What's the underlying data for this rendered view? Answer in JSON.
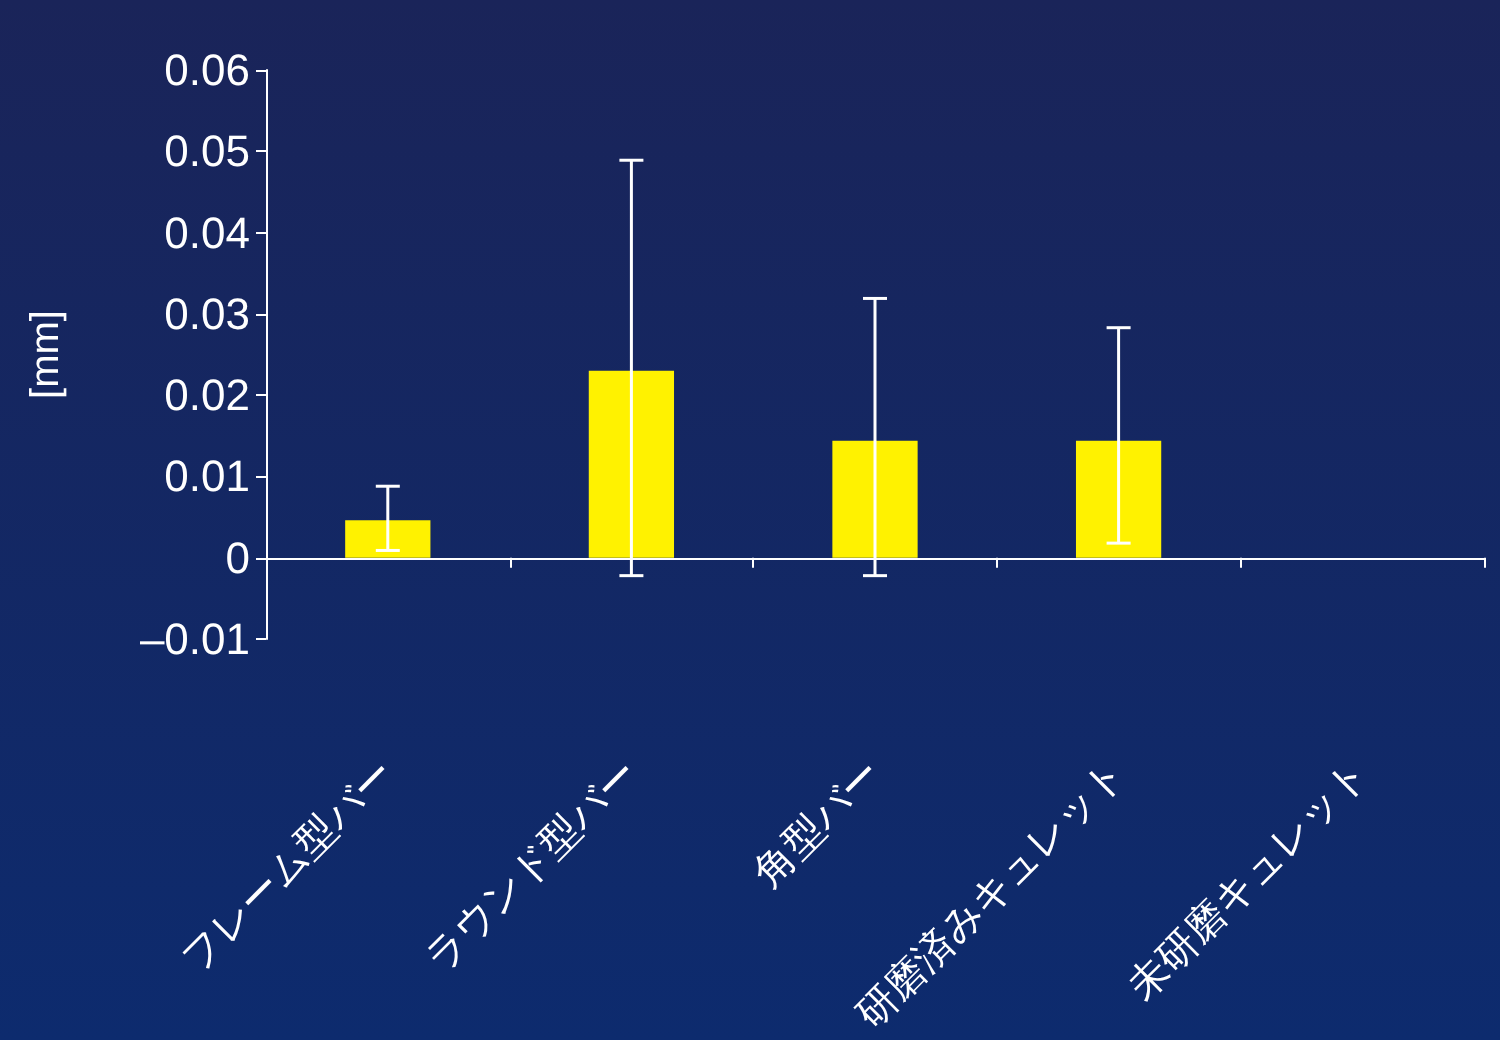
{
  "chart_data": {
    "type": "bar",
    "ylabel": "[mm]",
    "categories": [
      "フレーム型バー",
      "ラウンド型バー",
      "角型バー",
      "研磨済みキュレット",
      "未研磨キュレット"
    ],
    "values": [
      0.0046,
      0.023,
      0.0144,
      0.0144,
      null
    ],
    "errors": [
      [
        0.0009,
        0.0088
      ],
      [
        -0.0022,
        0.0489
      ],
      [
        -0.0022,
        0.0319
      ],
      [
        0.0018,
        0.0283
      ],
      null
    ],
    "color": "#fff200",
    "ylim": [
      -0.01,
      0.06
    ],
    "yticks": [
      {
        "value": -0.01,
        "label": "–0.01"
      },
      0,
      0.01,
      0.02,
      0.03,
      0.04,
      0.05,
      0.06
    ],
    "grid": false
  }
}
